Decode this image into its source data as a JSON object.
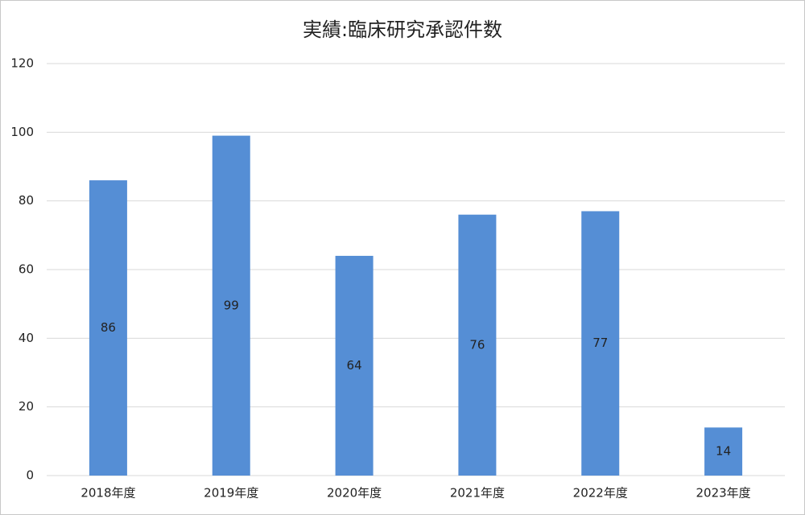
{
  "chart_data": {
    "type": "bar",
    "title": "実績:臨床研究承認件数",
    "categories": [
      "2018年度",
      "2019年度",
      "2020年度",
      "2021年度",
      "2022年度",
      "2023年度"
    ],
    "values": [
      86,
      99,
      64,
      76,
      77,
      14
    ],
    "color": "#558ed5",
    "ylim": [
      0,
      120
    ],
    "yticks": [
      0,
      20,
      40,
      60,
      80,
      100,
      120
    ],
    "grid": true
  }
}
